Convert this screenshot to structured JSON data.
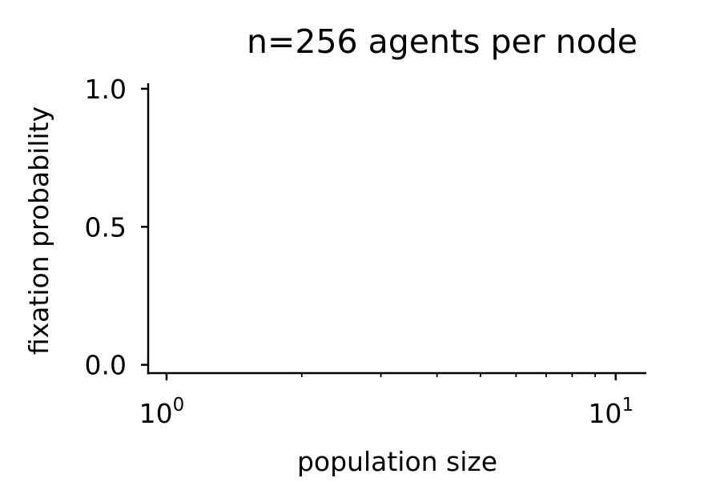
{
  "chart_data": {
    "type": "line",
    "title": "n=256 agents per node",
    "xlabel": "population size",
    "ylabel": "fixation probability",
    "xscale": "log",
    "xlim": [
      0.91,
      11.7
    ],
    "ylim": [
      -0.03,
      1.02
    ],
    "x_ticks": [
      {
        "value": 1,
        "base": "10",
        "exp": "0"
      },
      {
        "value": 10,
        "base": "10",
        "exp": "1"
      }
    ],
    "y_ticks": [
      {
        "value": 0.0,
        "label": "0.0"
      },
      {
        "value": 0.5,
        "label": "0.5"
      },
      {
        "value": 1.0,
        "label": "1.0"
      }
    ],
    "series": [],
    "grid": false,
    "legend": "none",
    "colors": {
      "axis": "#000000",
      "background": "#ffffff"
    }
  }
}
